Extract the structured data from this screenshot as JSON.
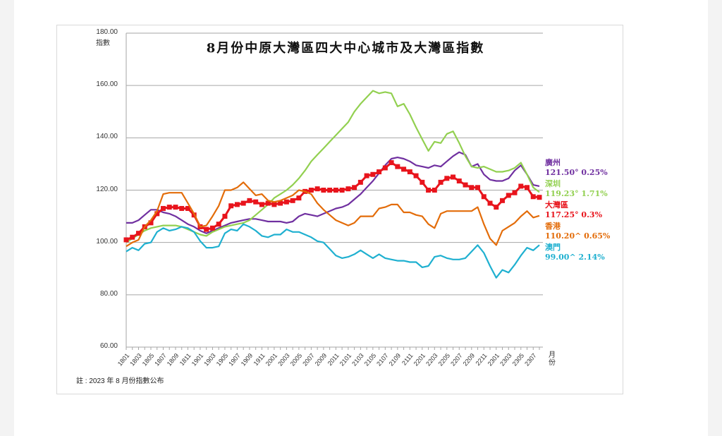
{
  "chart_data": {
    "type": "line",
    "title": "8月份中原大灣區四大中心城市及大灣區指數",
    "ylabel": "指數",
    "xlabel": "月份",
    "ylim": [
      60,
      180
    ],
    "yticks": [
      "60.00",
      "80.00",
      "100.00",
      "120.00",
      "140.00",
      "160.00",
      "180.00"
    ],
    "grid": true,
    "x": [
      "1801",
      "1802",
      "1803",
      "1804",
      "1805",
      "1806",
      "1807",
      "1808",
      "1809",
      "1810",
      "1811",
      "1812",
      "1901",
      "1902",
      "1903",
      "1904",
      "1905",
      "1906",
      "1907",
      "1908",
      "1909",
      "1910",
      "1911",
      "1912",
      "2001",
      "2002",
      "2003",
      "2004",
      "2005",
      "2006",
      "2007",
      "2008",
      "2009",
      "2010",
      "2011",
      "2012",
      "2101",
      "2102",
      "2103",
      "2104",
      "2105",
      "2106",
      "2107",
      "2108",
      "2109",
      "2110",
      "2111",
      "2112",
      "2201",
      "2202",
      "2203",
      "2204",
      "2205",
      "2206",
      "2207",
      "2208",
      "2209",
      "2210",
      "2211",
      "2212",
      "2301",
      "2302",
      "2303",
      "2304",
      "2305",
      "2306",
      "2307",
      "2308"
    ],
    "xtick_labels": [
      "1801",
      "1803",
      "1805",
      "1807",
      "1809",
      "1811",
      "1901",
      "1903",
      "1905",
      "1907",
      "1909",
      "1911",
      "2001",
      "2003",
      "2005",
      "2007",
      "2009",
      "2011",
      "2101",
      "2103",
      "2105",
      "2107",
      "2109",
      "2111",
      "2201",
      "2203",
      "2205",
      "2207",
      "2209",
      "2211",
      "2301",
      "2303",
      "2305",
      "2307"
    ],
    "series": [
      {
        "name": "廣州",
        "color": "#7030a0",
        "markers": false,
        "label_value": "121.50° 0.25%",
        "values": [
          107.5,
          107.5,
          108.5,
          110.5,
          112.5,
          112.5,
          111.5,
          111,
          110,
          108.5,
          107,
          106,
          104.5,
          103.5,
          104.5,
          105.5,
          106.5,
          107.5,
          108,
          108.5,
          109,
          109,
          108.5,
          108,
          108,
          108,
          107.5,
          108,
          110,
          111,
          110.5,
          110,
          111,
          112,
          113,
          113.5,
          114.5,
          116.5,
          118.5,
          121,
          123.5,
          126.5,
          129.5,
          132,
          132.5,
          132,
          131,
          129.5,
          129,
          128.5,
          129.5,
          129,
          131,
          133,
          134.5,
          133.5,
          129,
          130,
          126,
          124,
          123.5,
          123.5,
          124.5,
          127.5,
          129.5,
          126,
          122,
          121.5
        ]
      },
      {
        "name": "深圳",
        "color": "#92d050",
        "markers": false,
        "label_value": "119.23° 1.71%",
        "values": [
          100,
          101.5,
          103,
          104.5,
          105.5,
          106,
          106.5,
          106.5,
          106.5,
          106,
          105,
          104,
          103,
          102.5,
          104,
          105,
          106,
          106.5,
          107,
          107.5,
          108.5,
          110.5,
          112.5,
          114.5,
          117,
          118.5,
          120,
          122,
          124.5,
          127.5,
          131,
          133.5,
          136,
          138.5,
          141,
          143.5,
          146,
          150,
          153,
          155.5,
          158,
          157,
          157.5,
          157,
          152,
          153,
          149,
          144,
          139.5,
          135,
          138.5,
          138,
          141.5,
          142.5,
          138,
          133,
          129,
          128.5,
          129,
          128,
          127,
          127,
          127.5,
          128.5,
          130.5,
          126,
          121,
          119.23
        ]
      },
      {
        "name": "大灣區",
        "color": "#e8141c",
        "markers": true,
        "label_value": "117.25° 0.3%",
        "values": [
          101,
          102,
          103.5,
          106,
          107.5,
          111,
          113,
          113.5,
          113.5,
          113,
          113,
          110.5,
          106,
          105,
          105.5,
          107,
          110,
          114,
          114.5,
          115,
          116,
          115.5,
          114.5,
          115,
          114.5,
          115,
          115.5,
          116,
          117,
          119.5,
          120,
          120.5,
          120,
          120,
          120,
          120,
          120.5,
          121,
          123,
          125.5,
          126,
          127,
          128.5,
          130.5,
          129,
          128,
          127,
          125.5,
          123,
          120,
          120,
          123,
          124.5,
          125,
          123.5,
          122,
          121,
          121,
          117.5,
          115,
          113.5,
          116,
          118,
          119,
          121.5,
          121,
          117.5,
          117.25
        ]
      },
      {
        "name": "香港",
        "color": "#e36c09",
        "markers": false,
        "label_value": "110.20^ 0.65%",
        "values": [
          98.5,
          100,
          101,
          106,
          108.5,
          112,
          118.5,
          119,
          119,
          119,
          115,
          111,
          106,
          106.5,
          110,
          114,
          120,
          120,
          121,
          123,
          120.5,
          118,
          118.5,
          116,
          115.5,
          116,
          117,
          118,
          120,
          119.5,
          118.5,
          115,
          112.5,
          110.5,
          108.5,
          107.5,
          106.5,
          107.5,
          110,
          110,
          110,
          113,
          113.5,
          114.5,
          114.5,
          111.5,
          111.5,
          110.5,
          110,
          107,
          105.5,
          111,
          112,
          112,
          112,
          112,
          112,
          113.5,
          107,
          101.5,
          99,
          104.5,
          106,
          107.5,
          110,
          112,
          109.5,
          110.2
        ]
      },
      {
        "name": "澳門",
        "color": "#1fb0d0",
        "markers": false,
        "label_value": "99.00^ 2.14%",
        "values": [
          96.5,
          98,
          97,
          99.5,
          100,
          104,
          105.5,
          104.5,
          105,
          106,
          105.5,
          104,
          100.5,
          98,
          98,
          98.5,
          103.5,
          105,
          104.5,
          107,
          106,
          104.5,
          102.5,
          102,
          103,
          103,
          105,
          104,
          104,
          103,
          102,
          100.5,
          100,
          97.5,
          95,
          94,
          94.5,
          95.5,
          97,
          95.5,
          94,
          95.5,
          94,
          93.5,
          93,
          93,
          92.5,
          92.5,
          90.5,
          91,
          94.5,
          95,
          94,
          93.5,
          93.5,
          94,
          96.5,
          99,
          96,
          91,
          86.5,
          89.5,
          88.5,
          91.5,
          95,
          98,
          97,
          99
        ]
      }
    ]
  },
  "footnote": "註 : 2023 年 8 月份指數公布"
}
